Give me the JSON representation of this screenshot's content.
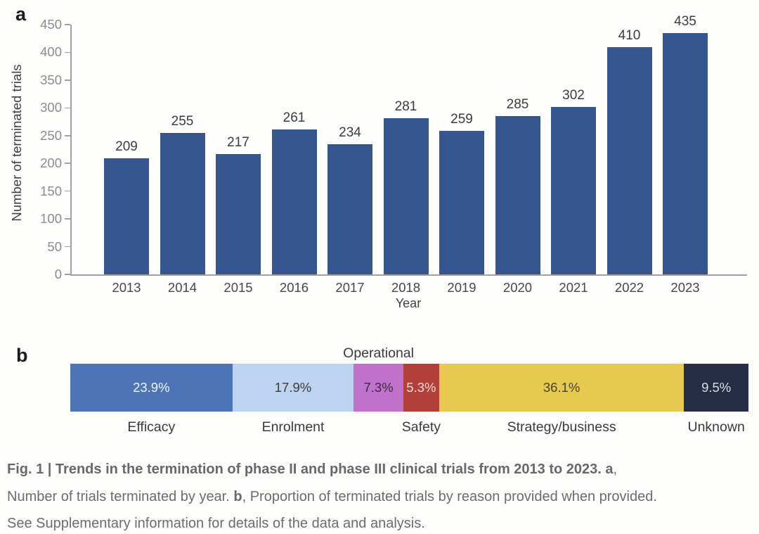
{
  "chart_data": [
    {
      "type": "bar",
      "panel_label": "a",
      "title": "",
      "xlabel": "Year",
      "ylabel": "Number of terminated trials",
      "ylim": [
        0,
        450
      ],
      "ytick_step": 50,
      "grid": false,
      "bar_color": "#35568e",
      "categories": [
        "2013",
        "2014",
        "2015",
        "2016",
        "2017",
        "2018",
        "2019",
        "2020",
        "2021",
        "2022",
        "2023"
      ],
      "values": [
        209,
        255,
        217,
        261,
        234,
        281,
        259,
        285,
        302,
        410,
        435
      ]
    },
    {
      "type": "stacked-bar",
      "panel_label": "b",
      "title": "",
      "unit": "%",
      "segments": [
        {
          "label": "Efficacy",
          "value": 23.9,
          "display": "23.9%",
          "color": "#4c74b6",
          "text_color": "#f2f5fa",
          "label_position": "below"
        },
        {
          "label": "Enrolment",
          "value": 17.9,
          "display": "17.9%",
          "color": "#bcd4ef",
          "text_color": "#3c3c3c",
          "label_position": "below"
        },
        {
          "label": "Operational",
          "value": 7.3,
          "display": "7.3%",
          "color": "#c172cd",
          "text_color": "#3f2547",
          "label_position": "above"
        },
        {
          "label": "Safety",
          "value": 5.3,
          "display": "5.3%",
          "color": "#b23f39",
          "text_color": "#f3dddb",
          "label_position": "below"
        },
        {
          "label": "Strategy/business",
          "value": 36.1,
          "display": "36.1%",
          "color": "#e7c950",
          "text_color": "#474332",
          "label_position": "below"
        },
        {
          "label": "Unknown",
          "value": 9.5,
          "display": "9.5%",
          "color": "#252d45",
          "text_color": "#dcdee7",
          "label_position": "below"
        }
      ]
    }
  ],
  "caption": {
    "lines": [
      {
        "runs": [
          {
            "text": "Fig. 1 | Trends in the termination of phase II and phase III clinical trials from 2013 to 2023. a",
            "bold": true
          },
          {
            "text": ",",
            "bold": false
          }
        ]
      },
      {
        "runs": [
          {
            "text": "Number of trials terminated by year. ",
            "bold": false
          },
          {
            "text": "b",
            "bold": true
          },
          {
            "text": ", Proportion of terminated trials by reason provided when provided.",
            "bold": false
          }
        ]
      },
      {
        "runs": [
          {
            "text": "See Supplementary information for details of the data and analysis.",
            "bold": false
          }
        ]
      }
    ]
  }
}
